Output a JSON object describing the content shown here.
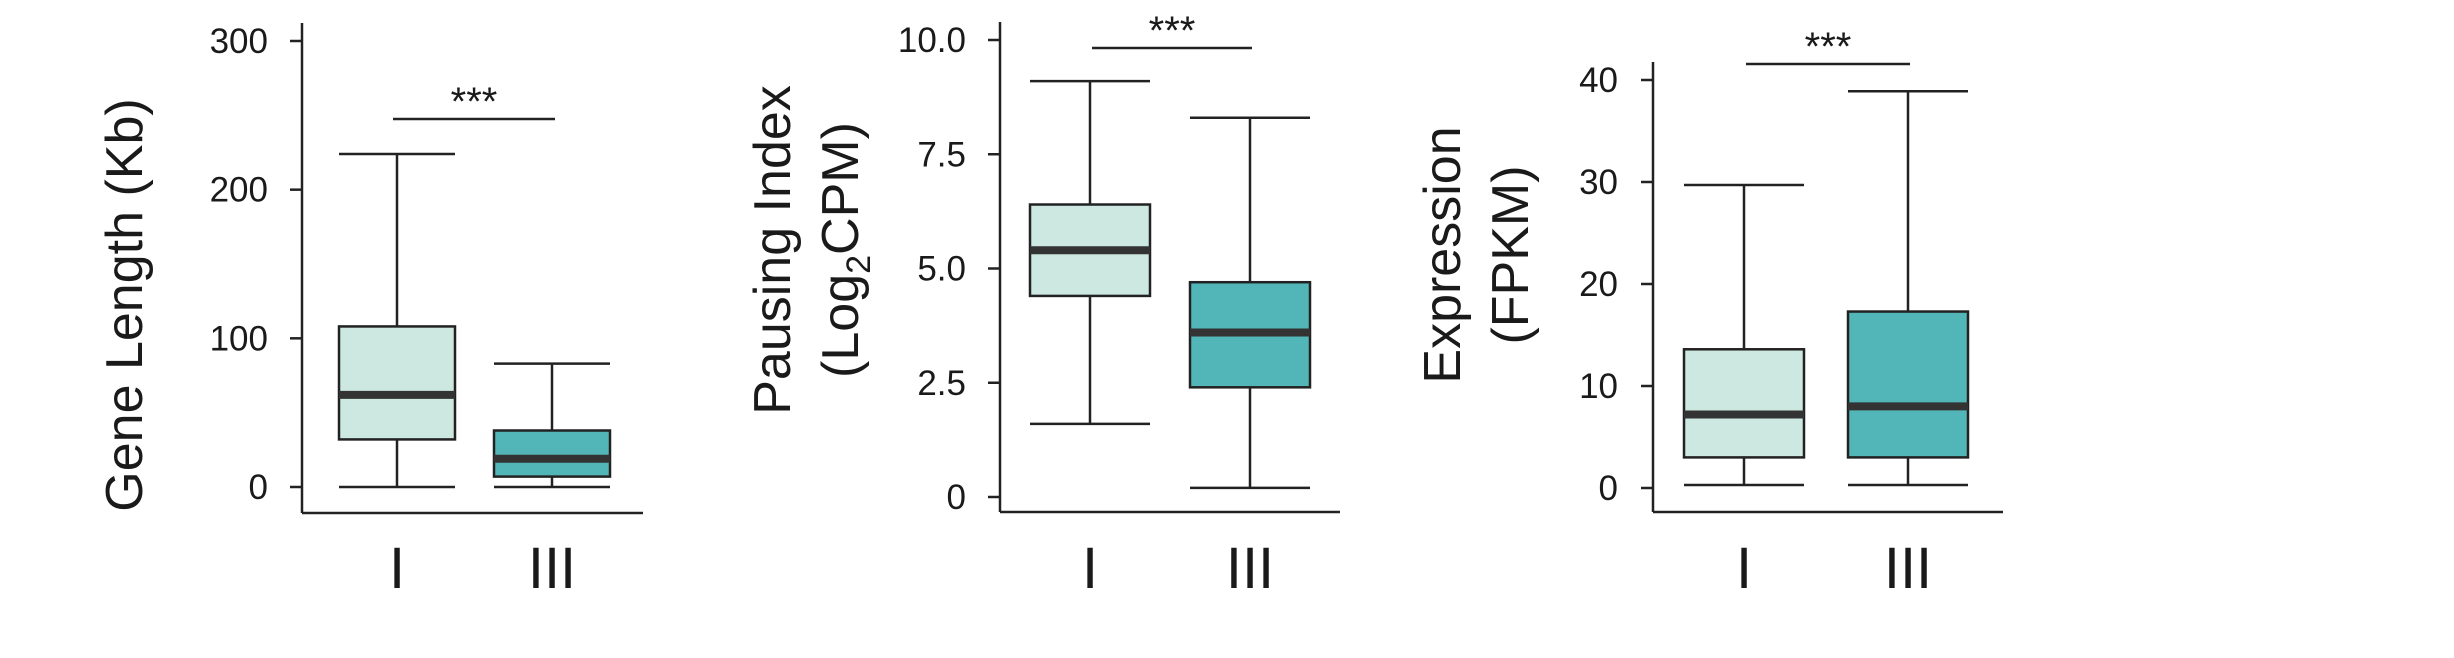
{
  "colors": {
    "group_I": "#cce8e0",
    "group_III": "#52b6b8",
    "median": "#333333",
    "stroke": "#222222"
  },
  "chart_data": [
    {
      "type": "box",
      "categories": [
        "I",
        "III"
      ],
      "ylabel": "Gene Length (Kb)",
      "ylim": [
        0,
        300
      ],
      "yticks": [
        "0",
        "100",
        "200",
        "300"
      ],
      "boxes": [
        {
          "min": 0,
          "q1": 32,
          "median": 62,
          "q3": 108,
          "max": 224
        },
        {
          "min": 0,
          "q1": 7,
          "median": 19,
          "q3": 38,
          "max": 83
        }
      ],
      "significance": "***"
    },
    {
      "type": "box",
      "categories": [
        "I",
        "III"
      ],
      "ylabel_line1": "Pausing Index",
      "ylabel_line2_prefix": "(Log",
      "ylabel_line2_sub": "2",
      "ylabel_line2_suffix": "CPM)",
      "ylim": [
        0,
        10
      ],
      "yticks": [
        "0",
        "2.5",
        "5.0",
        "7.5",
        "10.0"
      ],
      "boxes": [
        {
          "min": 1.6,
          "q1": 4.4,
          "median": 5.4,
          "q3": 6.4,
          "max": 9.1
        },
        {
          "min": 0.2,
          "q1": 2.4,
          "median": 3.6,
          "q3": 4.7,
          "max": 8.3
        }
      ],
      "significance": "***"
    },
    {
      "type": "box",
      "categories": [
        "I",
        "III"
      ],
      "ylabel_line1": "Expression",
      "ylabel_line2": "(FPKM)",
      "ylim": [
        0,
        40
      ],
      "yticks": [
        "0",
        "10",
        "20",
        "30",
        "40"
      ],
      "boxes": [
        {
          "min": 0.3,
          "q1": 3,
          "median": 7.2,
          "q3": 13.6,
          "max": 29.7
        },
        {
          "min": 0.3,
          "q1": 3,
          "median": 8,
          "q3": 17.3,
          "max": 38.9
        }
      ],
      "significance": "***"
    }
  ]
}
